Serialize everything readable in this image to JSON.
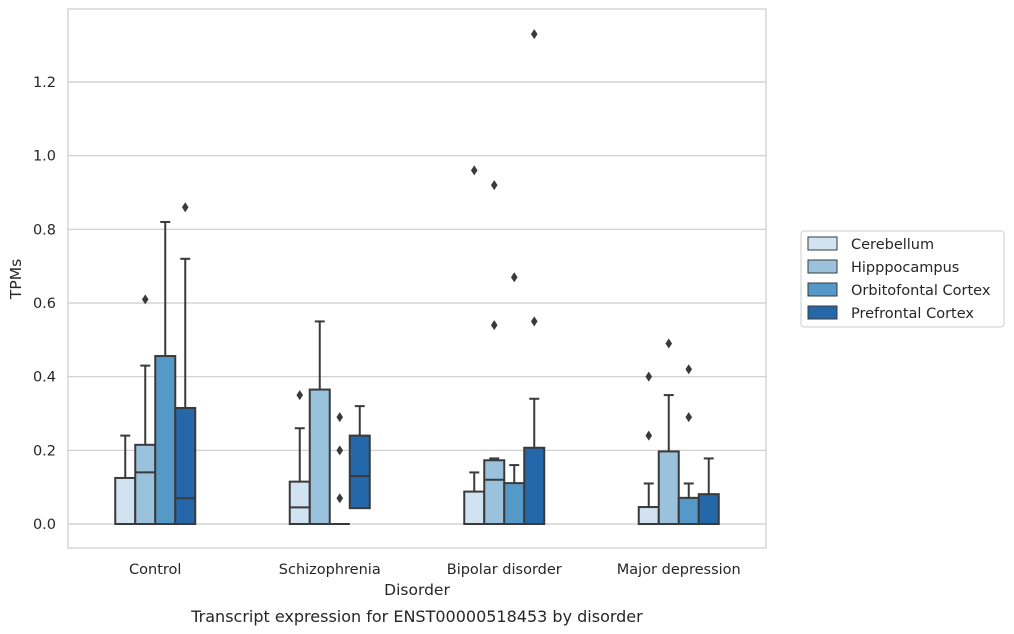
{
  "caption": "Transcript expression for ENST00000518453 by disorder",
  "chart_data": {
    "type": "box",
    "xlabel": "Disorder",
    "ylabel": "TPMs",
    "ylim": [
      -0.065,
      1.39
    ],
    "yticks": [
      0.0,
      0.2,
      0.4,
      0.6,
      0.8,
      1.0,
      1.2
    ],
    "ytick_labels": [
      "0.0",
      "0.2",
      "0.4",
      "0.6",
      "0.8",
      "1.0",
      "1.2"
    ],
    "grid": "horizontal",
    "legend_position": "right-center",
    "categories": [
      "Control",
      "Schizophrenia",
      "Bipolar disorder",
      "Major depression"
    ],
    "series": [
      {
        "name": "Cerebellum",
        "color": "#d1e2f1",
        "boxes": [
          {
            "min": 0.0,
            "q1": 0.0,
            "median": 0.0,
            "q3": 0.125,
            "max": 0.24,
            "outliers": []
          },
          {
            "min": 0.0,
            "q1": 0.0,
            "median": 0.045,
            "q3": 0.115,
            "max": 0.26,
            "outliers": [
              0.35
            ]
          },
          {
            "min": 0.0,
            "q1": 0.0,
            "median": 0.0,
            "q3": 0.088,
            "max": 0.14,
            "outliers": [
              0.96
            ]
          },
          {
            "min": 0.0,
            "q1": 0.0,
            "median": 0.0,
            "q3": 0.046,
            "max": 0.11,
            "outliers": [
              0.24,
              0.4
            ]
          }
        ]
      },
      {
        "name": "Hipppocampus",
        "color": "#9ac2dd",
        "boxes": [
          {
            "min": 0.0,
            "q1": 0.0,
            "median": 0.14,
            "q3": 0.215,
            "max": 0.43,
            "outliers": [
              0.61
            ]
          },
          {
            "min": 0.0,
            "q1": 0.0,
            "median": 0.0,
            "q3": 0.365,
            "max": 0.55,
            "outliers": []
          },
          {
            "min": 0.0,
            "q1": 0.0,
            "median": 0.12,
            "q3": 0.173,
            "max": 0.178,
            "outliers": [
              0.54,
              0.92
            ]
          },
          {
            "min": 0.0,
            "q1": 0.0,
            "median": 0.0,
            "q3": 0.197,
            "max": 0.35,
            "outliers": [
              0.49
            ]
          }
        ]
      },
      {
        "name": "Orbitofontal Cortex",
        "color": "#5599c8",
        "boxes": [
          {
            "min": 0.0,
            "q1": 0.0,
            "median": 0.0,
            "q3": 0.456,
            "max": 0.82,
            "outliers": []
          },
          {
            "min": 0.0,
            "q1": 0.0,
            "median": 0.0,
            "q3": 0.0,
            "max": 0.0,
            "outliers": [
              0.07,
              0.2,
              0.29
            ]
          },
          {
            "min": 0.0,
            "q1": 0.0,
            "median": 0.0,
            "q3": 0.111,
            "max": 0.16,
            "outliers": [
              0.67
            ]
          },
          {
            "min": 0.0,
            "q1": 0.0,
            "median": 0.0,
            "q3": 0.071,
            "max": 0.11,
            "outliers": [
              0.29,
              0.42
            ]
          }
        ]
      },
      {
        "name": "Prefrontal Cortex",
        "color": "#2568a9",
        "boxes": [
          {
            "min": 0.0,
            "q1": 0.0,
            "median": 0.07,
            "q3": 0.315,
            "max": 0.72,
            "outliers": [
              0.86
            ]
          },
          {
            "min": 0.0,
            "q1": 0.043,
            "median": 0.13,
            "q3": 0.24,
            "max": 0.32,
            "outliers": []
          },
          {
            "min": 0.0,
            "q1": 0.0,
            "median": 0.0,
            "q3": 0.207,
            "max": 0.34,
            "outliers": [
              0.55,
              1.33
            ]
          },
          {
            "min": 0.0,
            "q1": 0.0,
            "median": 0.0,
            "q3": 0.081,
            "max": 0.178,
            "outliers": []
          }
        ]
      }
    ]
  }
}
